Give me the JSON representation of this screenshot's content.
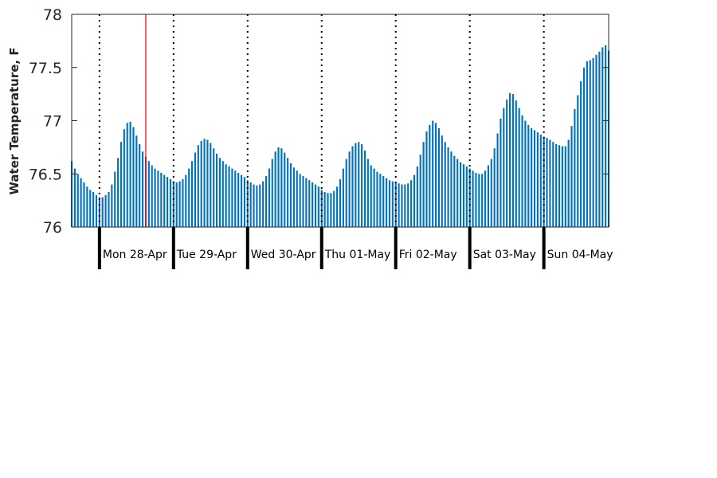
{
  "chart_data": {
    "type": "bar",
    "title": "",
    "xlabel": "",
    "ylabel": "Water Temperature, F",
    "ylim": [
      76,
      78
    ],
    "yticks": [
      76,
      76.5,
      77,
      77.5,
      78
    ],
    "ytick_labels": [
      "76",
      "76.5",
      "77",
      "77.5",
      "78"
    ],
    "bar_color": "#0072bd",
    "marker_color": "#ff0000",
    "grid": false,
    "x_range": [
      "2025-04-27 15:00",
      "2025-05-04 21:00"
    ],
    "marker_time": "2025-04-28 15:00",
    "day_boundaries": [
      "2025-04-28 00:00",
      "2025-04-29 00:00",
      "2025-04-30 00:00",
      "2025-05-01 00:00",
      "2025-05-02 00:00",
      "2025-05-03 00:00",
      "2025-05-04 00:00"
    ],
    "day_labels": [
      "Mon 28-Apr",
      "Tue 29-Apr",
      "Wed 30-Apr",
      "Thu 01-May",
      "Fri 02-May",
      "Sat 03-May",
      "Sun 04-May"
    ],
    "x_start": "2025-04-27 15:00",
    "x_step_hours": 1,
    "values": [
      76.62,
      76.55,
      76.5,
      76.46,
      76.42,
      76.38,
      76.35,
      76.33,
      76.3,
      76.28,
      76.28,
      76.3,
      76.33,
      76.4,
      76.52,
      76.65,
      76.8,
      76.92,
      76.98,
      76.99,
      76.94,
      76.86,
      76.78,
      76.71,
      76.66,
      76.62,
      76.58,
      76.55,
      76.53,
      76.51,
      76.49,
      76.47,
      76.45,
      76.43,
      76.42,
      76.43,
      76.45,
      76.49,
      76.55,
      76.62,
      76.7,
      76.77,
      76.81,
      76.83,
      76.82,
      76.79,
      76.74,
      76.69,
      76.65,
      76.62,
      76.59,
      76.57,
      76.55,
      76.53,
      76.51,
      76.49,
      76.47,
      76.44,
      76.42,
      76.4,
      76.39,
      76.4,
      76.43,
      76.48,
      76.55,
      76.64,
      76.71,
      76.75,
      76.74,
      76.7,
      76.65,
      76.6,
      76.56,
      76.53,
      76.5,
      76.48,
      76.46,
      76.44,
      76.42,
      76.4,
      76.38,
      76.35,
      76.33,
      76.32,
      76.32,
      76.34,
      76.38,
      76.45,
      76.55,
      76.64,
      76.71,
      76.76,
      76.79,
      76.8,
      76.78,
      76.72,
      76.64,
      76.58,
      76.55,
      76.52,
      76.5,
      76.48,
      76.46,
      76.44,
      76.43,
      76.42,
      76.41,
      76.4,
      76.4,
      76.41,
      76.44,
      76.49,
      76.57,
      76.68,
      76.8,
      76.9,
      76.96,
      77.0,
      76.98,
      76.93,
      76.86,
      76.8,
      76.75,
      76.71,
      76.67,
      76.64,
      76.61,
      76.59,
      76.57,
      76.55,
      76.53,
      76.51,
      76.5,
      76.5,
      76.53,
      76.58,
      76.64,
      76.74,
      76.88,
      77.02,
      77.12,
      77.2,
      77.26,
      77.25,
      77.19,
      77.12,
      77.05,
      77.0,
      76.96,
      76.93,
      76.91,
      76.89,
      76.87,
      76.85,
      76.84,
      76.82,
      76.8,
      76.78,
      76.77,
      76.76,
      76.76,
      76.82,
      76.95,
      77.11,
      77.24,
      77.37,
      77.5,
      77.56,
      77.57,
      77.59,
      77.62,
      77.65,
      77.69,
      77.71,
      77.66
    ]
  }
}
